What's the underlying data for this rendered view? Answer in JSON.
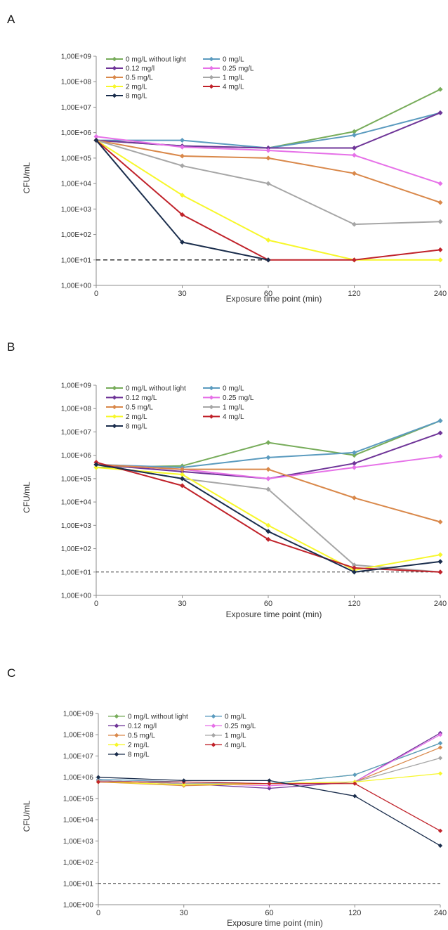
{
  "chart_data": [
    {
      "panel": "A",
      "type": "line",
      "ylabel": "CFU/mL",
      "xlabel": "Exposure time point (min)",
      "y_scale": "log",
      "ylim": [
        1,
        1000000000
      ],
      "yticks": [
        "1,00E+00",
        "1,00E+01",
        "1,00E+02",
        "1,00E+03",
        "1,00E+04",
        "1,00E+05",
        "1,00E+06",
        "1,00E+07",
        "1,00E+08",
        "1,00E+09"
      ],
      "categories": [
        "0",
        "30",
        "60",
        "120",
        "240"
      ],
      "detection_limit": 10,
      "legend_placement": "top-left",
      "series": [
        {
          "name": "0 mg/L without light",
          "color": "#77ac5a",
          "values": [
            500000,
            300000,
            250000,
            1100000,
            50000000
          ]
        },
        {
          "name": "0 mg/L",
          "color": "#5b9bbf",
          "values": [
            500000,
            500000,
            250000,
            800000,
            6000000
          ]
        },
        {
          "name": "0.12 mg/l",
          "color": "#6f3598",
          "values": [
            500000,
            300000,
            250000,
            250000,
            6000000
          ]
        },
        {
          "name": "0.25 mg/L",
          "color": "#e671e8",
          "values": [
            700000,
            270000,
            200000,
            130000,
            10000
          ]
        },
        {
          "name": "0.5 mg/L",
          "color": "#d9884a",
          "values": [
            500000,
            120000,
            100000,
            25000,
            1800
          ]
        },
        {
          "name": "1 mg/L",
          "color": "#a6a6a6",
          "values": [
            500000,
            50000,
            10000,
            250,
            320
          ]
        },
        {
          "name": "2 mg/L",
          "color": "#f7f72a",
          "values": [
            500000,
            3500,
            60,
            10,
            10
          ]
        },
        {
          "name": "4 mg/L",
          "color": "#c0222a",
          "values": [
            500000,
            600,
            10,
            10,
            25
          ]
        },
        {
          "name": "8 mg/L",
          "color": "#1a2d4c",
          "values": [
            500000,
            50,
            10,
            null,
            null
          ]
        }
      ]
    },
    {
      "panel": "B",
      "type": "line",
      "ylabel": "CFU/mL",
      "xlabel": "Exposure time point (min)",
      "y_scale": "log",
      "ylim": [
        1,
        1000000000
      ],
      "yticks": [
        "1,00E+00",
        "1,00E+01",
        "1,00E+02",
        "1,00E+03",
        "1,00E+04",
        "1,00E+05",
        "1,00E+06",
        "1,00E+07",
        "1,00E+08",
        "1,00E+09"
      ],
      "categories": [
        "0",
        "30",
        "60",
        "120",
        "240"
      ],
      "detection_limit": 10,
      "legend_placement": "top-left",
      "series": [
        {
          "name": "0 mg/L without light",
          "color": "#77ac5a",
          "values": [
            300000,
            350000,
            3500000,
            1000000,
            30000000
          ]
        },
        {
          "name": "0 mg/L",
          "color": "#5b9bbf",
          "values": [
            400000,
            300000,
            800000,
            1300000,
            30000000
          ]
        },
        {
          "name": "0.12 mg/L",
          "color": "#6f3598",
          "values": [
            400000,
            200000,
            100000,
            450000,
            9000000
          ]
        },
        {
          "name": "0.25 mg/L",
          "color": "#e671e8",
          "values": [
            400000,
            250000,
            100000,
            300000,
            900000
          ]
        },
        {
          "name": "0.5 mg/L",
          "color": "#d9884a",
          "values": [
            400000,
            250000,
            250000,
            15000,
            1400
          ]
        },
        {
          "name": "1 mg/L",
          "color": "#a6a6a6",
          "values": [
            400000,
            100000,
            35000,
            20,
            10
          ]
        },
        {
          "name": "2 mg/L",
          "color": "#f7f72a",
          "values": [
            300000,
            150000,
            1000,
            12,
            55
          ]
        },
        {
          "name": "4 mg/L",
          "color": "#c0222a",
          "values": [
            500000,
            50000,
            250,
            15,
            10
          ]
        },
        {
          "name": "8 mg/L",
          "color": "#1a2d4c",
          "values": [
            400000,
            100000,
            550,
            10,
            28
          ]
        }
      ]
    },
    {
      "panel": "C",
      "type": "line",
      "ylabel": "CFU/mL",
      "xlabel": "Exposure time point (min)",
      "y_scale": "log",
      "ylim": [
        1,
        1000000000
      ],
      "yticks": [
        "1,00E+00",
        "1,00E+01",
        "1,00E+02",
        "1,00E+03",
        "1,00E+04",
        "1,00E+05",
        "1,00E+06",
        "1,00E+07",
        "1,00E+08",
        "1,00E+09"
      ],
      "categories": [
        "0",
        "30",
        "60",
        "120",
        "240"
      ],
      "detection_limit": 10,
      "legend_placement": "top-left",
      "series": [
        {
          "name": "0 mg/L without light",
          "color": "#77ac5a",
          "values": [
            700000,
            500000,
            500000,
            1300000,
            40000000
          ]
        },
        {
          "name": "0 mg/L",
          "color": "#5b9bbf",
          "values": [
            800000,
            600000,
            500000,
            1300000,
            40000000
          ]
        },
        {
          "name": "0.12 mg/l",
          "color": "#6f3598",
          "values": [
            700000,
            500000,
            300000,
            600000,
            120000000
          ]
        },
        {
          "name": "0.25 mg/L",
          "color": "#e671e8",
          "values": [
            700000,
            500000,
            400000,
            600000,
            100000000
          ]
        },
        {
          "name": "0.5 mg/L",
          "color": "#d9884a",
          "values": [
            600000,
            400000,
            500000,
            600000,
            25000000
          ]
        },
        {
          "name": "1 mg/L",
          "color": "#a6a6a6",
          "values": [
            700000,
            500000,
            500000,
            600000,
            8000000
          ]
        },
        {
          "name": "2 mg/L",
          "color": "#f7f72a",
          "values": [
            600000,
            450000,
            500000,
            600000,
            1500000
          ]
        },
        {
          "name": "4 mg/L",
          "color": "#c0222a",
          "values": [
            600000,
            600000,
            500000,
            500000,
            3000
          ]
        },
        {
          "name": "8 mg/L",
          "color": "#1a2d4c",
          "values": [
            1000000,
            700000,
            700000,
            130000,
            600
          ]
        }
      ]
    }
  ]
}
